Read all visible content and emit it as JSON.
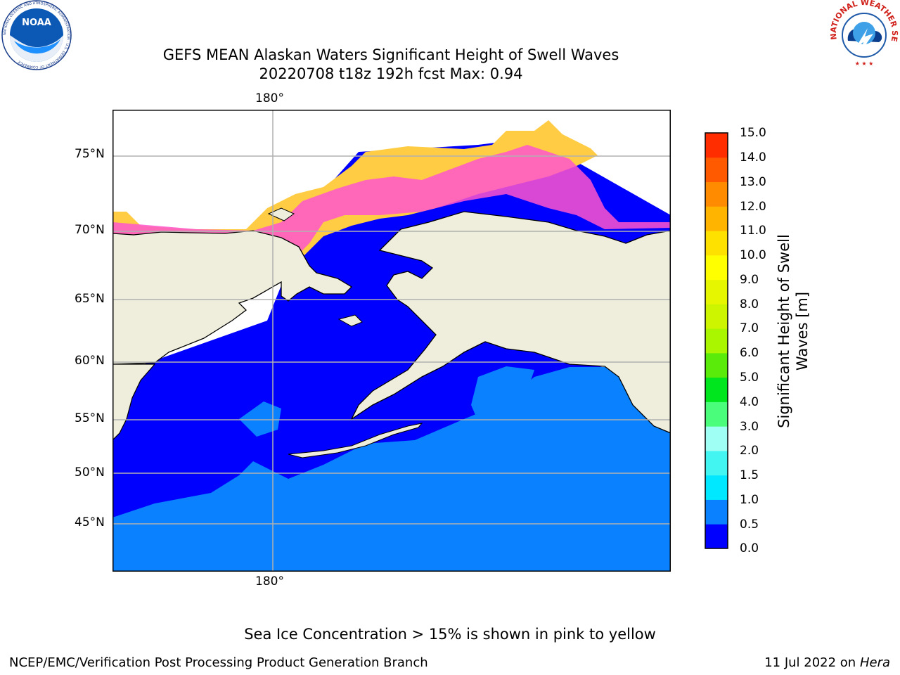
{
  "title": {
    "line1": "GEFS MEAN Alaskan Waters Significant Height of Swell Waves",
    "line2": "20220708 t18z 192h fcst   Max: 0.94"
  },
  "map": {
    "lon_top_label": "180°",
    "lon_bottom_label": "180°",
    "lat_labels": [
      "75°N",
      "70°N",
      "65°N",
      "60°N",
      "55°N",
      "50°N",
      "45°N"
    ],
    "colors": {
      "land": "#efeedd",
      "ocean_low": "#0000ff",
      "ocean_mid": "#0a82ff",
      "grid": "#b0b0b0",
      "coast": "#000000",
      "ice_pink": "#ff55cc",
      "ice_yellow": "#ffcc44"
    }
  },
  "colorbar": {
    "label": "Significant Height of Swell Waves [m]",
    "ticks": [
      "15.0",
      "14.0",
      "13.0",
      "12.0",
      "11.0",
      "10.0",
      "9.0",
      "8.0",
      "7.0",
      "6.0",
      "5.0",
      "4.0",
      "3.0",
      "2.0",
      "1.5",
      "1.0",
      "0.5",
      "0.0"
    ],
    "colors": [
      "#0000ff",
      "#0a82ff",
      "#00e8ff",
      "#42f5f0",
      "#a0fff5",
      "#4afd7a",
      "#00e61e",
      "#5aeb0a",
      "#aaf500",
      "#cdf500",
      "#e6f500",
      "#ffff00",
      "#ffe100",
      "#ffb400",
      "#ff8c00",
      "#ff5a00",
      "#ff2d00"
    ]
  },
  "logos": {
    "noaa": {
      "text": "NOAA",
      "ring": "NATIONAL OCEANIC AND ATMOSPHERIC ADMINISTRATION · U.S. DEPARTMENT OF COMMERCE"
    },
    "nws": {
      "ring": "NATIONAL WEATHER SERVICE"
    }
  },
  "footer": {
    "note": "Sea Ice Concentration > 15% is shown in pink to yellow",
    "left": "NCEP/EMC/Verification Post Processing Product Generation Branch",
    "right_date": "11 Jul 2022 on ",
    "right_host": "Hera"
  }
}
